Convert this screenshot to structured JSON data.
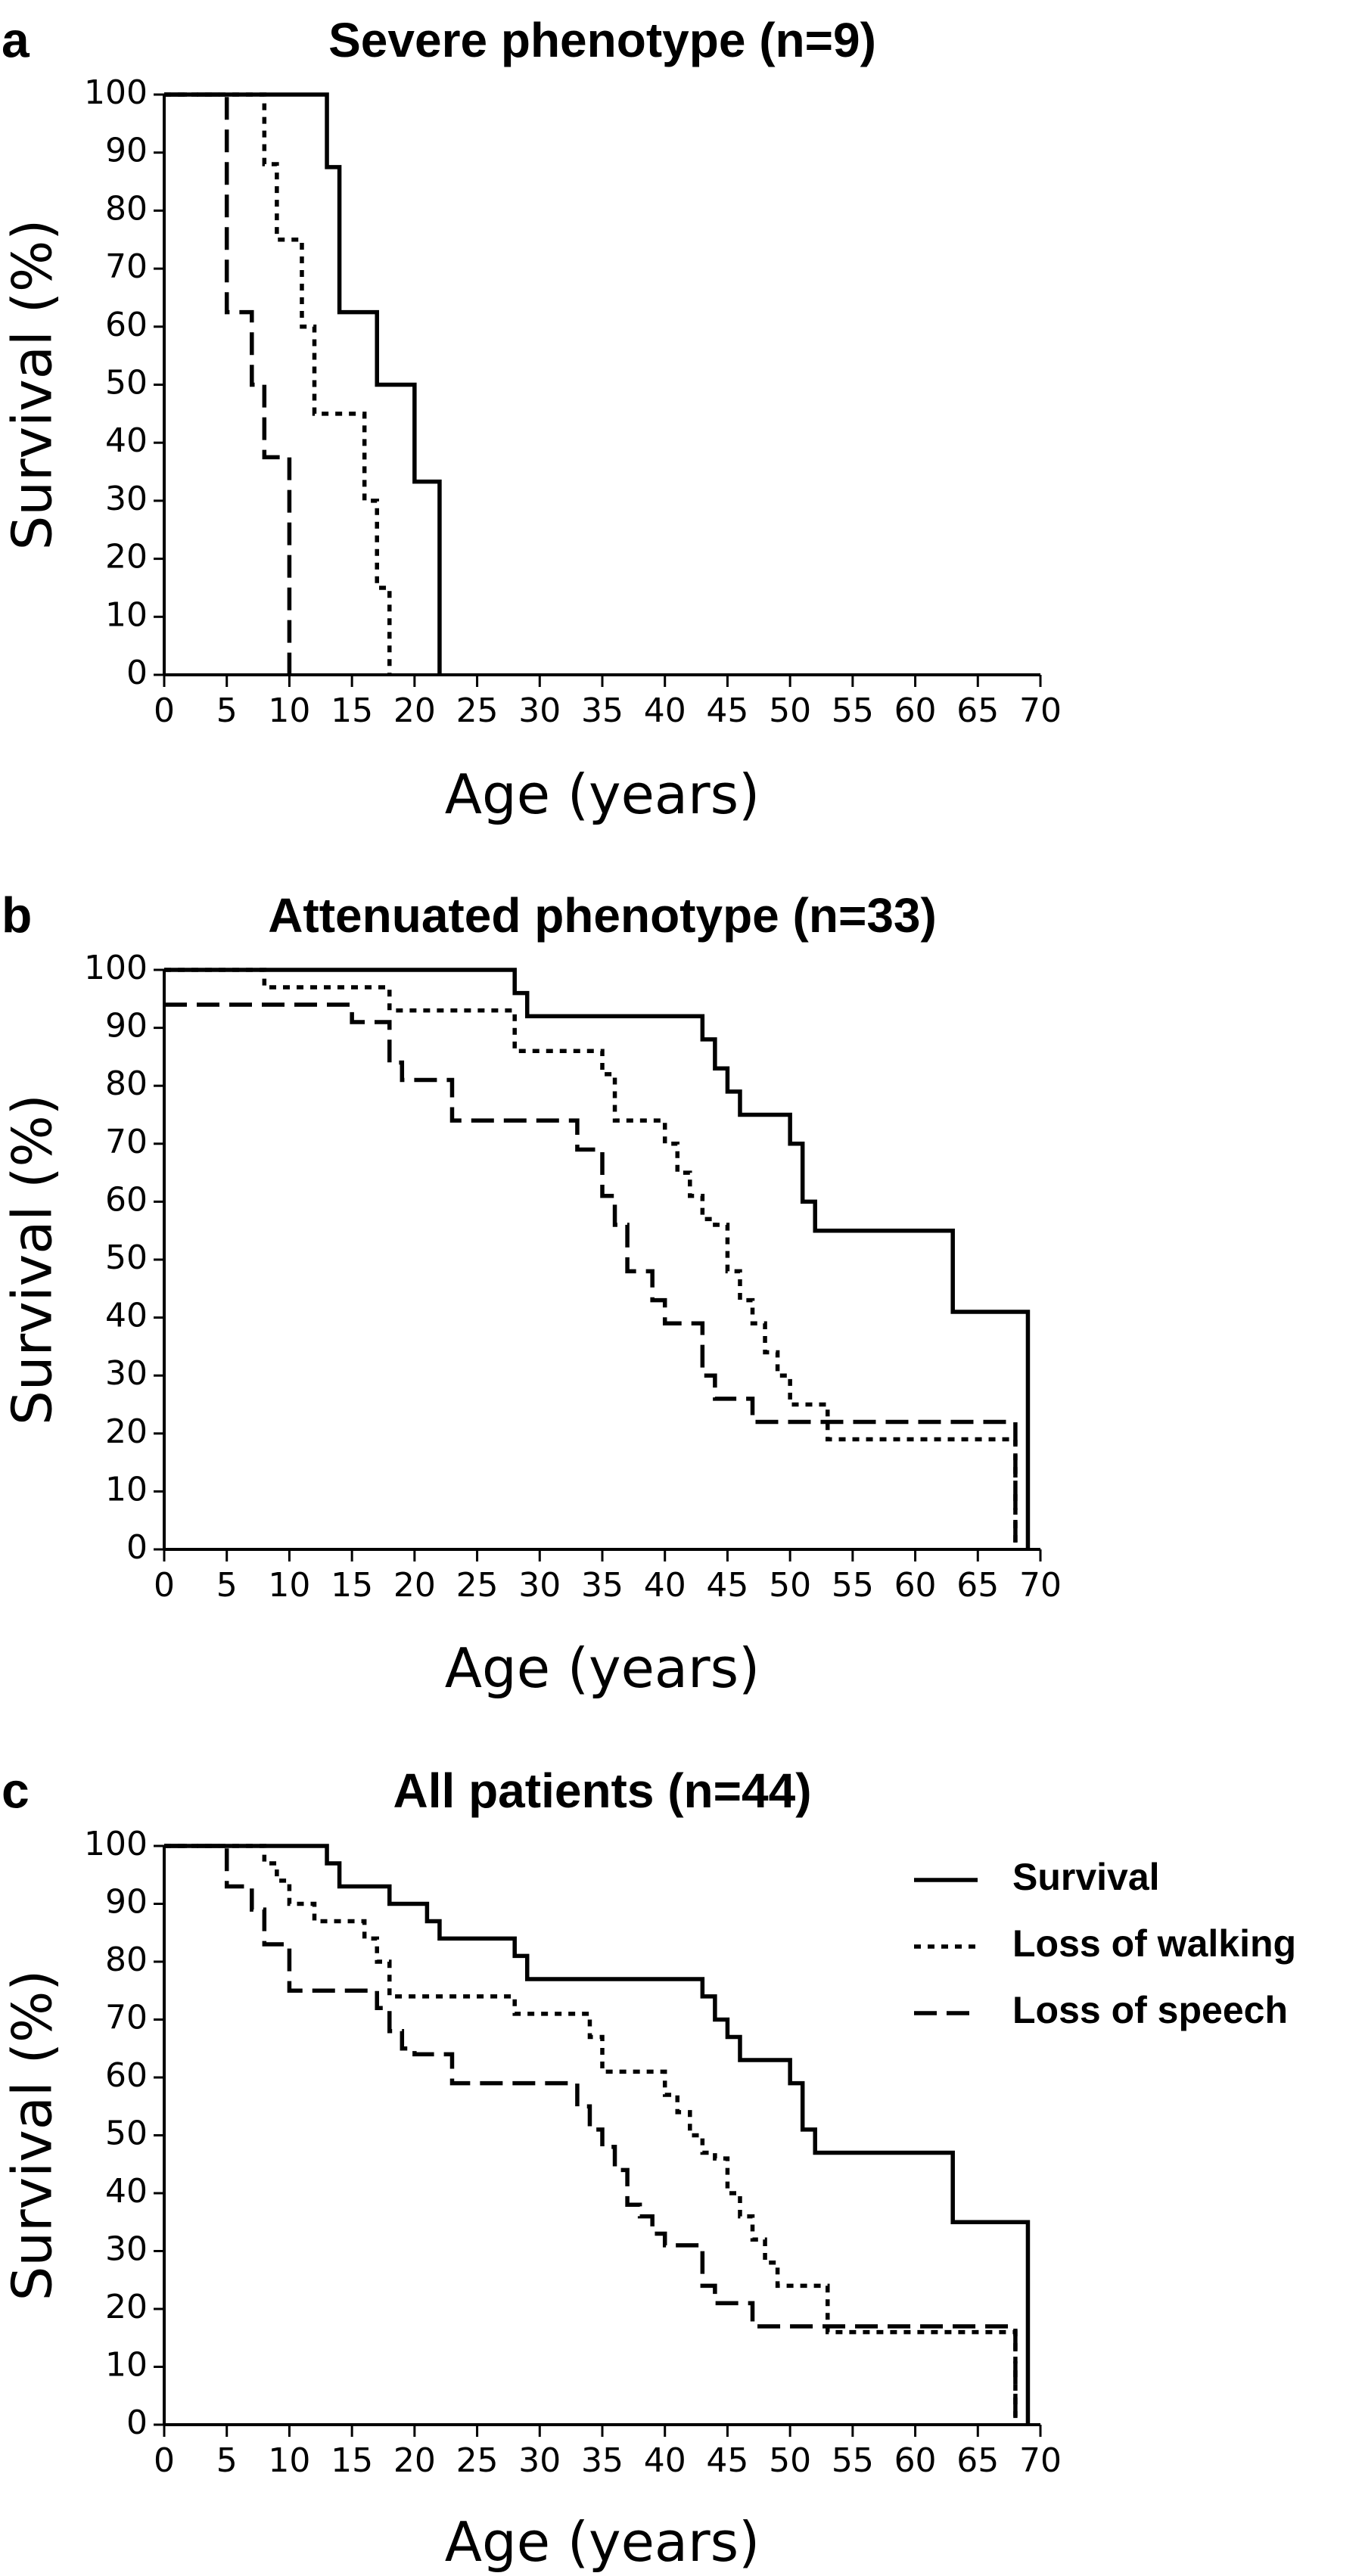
{
  "chart_data": [
    {
      "type": "line",
      "panel": "a",
      "title": "Severe phenotype (n=9)",
      "xlabel": "Age (years)",
      "ylabel": "Survival (%)",
      "xlim": [
        0,
        70
      ],
      "ylim": [
        0,
        100
      ],
      "xticks": [
        "0",
        "5",
        "10",
        "15",
        "20",
        "25",
        "30",
        "35",
        "40",
        "45",
        "50",
        "55",
        "60",
        "65",
        "70"
      ],
      "yticks": [
        "0",
        "10",
        "20",
        "30",
        "40",
        "50",
        "60",
        "70",
        "80",
        "90",
        "100"
      ],
      "step": true,
      "grid": false,
      "legend": null,
      "series": [
        {
          "style": "solid",
          "x": [
            0,
            13,
            14,
            17,
            20,
            22
          ],
          "y": [
            100,
            87.5,
            62.5,
            50,
            33.3,
            0
          ]
        },
        {
          "style": "dotted",
          "x": [
            0,
            8,
            9,
            10,
            11,
            12,
            16,
            17,
            18
          ],
          "y": [
            100,
            88,
            75,
            75,
            60,
            45,
            30,
            15,
            0
          ]
        },
        {
          "style": "dashed",
          "x": [
            0,
            5,
            7,
            8,
            10
          ],
          "y": [
            100,
            62.5,
            50,
            37.5,
            0
          ]
        }
      ]
    },
    {
      "type": "line",
      "panel": "b",
      "title": "Attenuated phenotype (n=33)",
      "xlabel": "Age (years)",
      "ylabel": "Survival (%)",
      "xlim": [
        0,
        70
      ],
      "ylim": [
        0,
        100
      ],
      "xticks": [
        "0",
        "5",
        "10",
        "15",
        "20",
        "25",
        "30",
        "35",
        "40",
        "45",
        "50",
        "55",
        "60",
        "65",
        "70"
      ],
      "yticks": [
        "0",
        "10",
        "20",
        "30",
        "40",
        "50",
        "60",
        "70",
        "80",
        "90",
        "100"
      ],
      "step": true,
      "grid": false,
      "legend": null,
      "series": [
        {
          "style": "solid",
          "x": [
            0,
            28,
            29,
            43,
            44,
            45,
            46,
            47,
            50,
            51,
            52,
            63,
            69
          ],
          "y": [
            100,
            96,
            92,
            88,
            83,
            79,
            75,
            75,
            70,
            60,
            55,
            41,
            0
          ]
        },
        {
          "style": "dotted",
          "x": [
            0,
            8,
            18,
            28,
            35,
            36,
            40,
            41,
            42,
            43,
            44,
            45,
            46,
            47,
            48,
            49,
            50,
            53,
            68
          ],
          "y": [
            100,
            97,
            93,
            86,
            82,
            74,
            70,
            65,
            61,
            57,
            56,
            48,
            43,
            39,
            34,
            30,
            25,
            19,
            0
          ]
        },
        {
          "style": "dashed",
          "x": [
            0,
            8,
            15,
            18,
            19,
            23,
            33,
            35,
            36,
            37,
            39,
            40,
            43,
            44,
            46,
            47,
            68
          ],
          "y": [
            94,
            94,
            91,
            84,
            81,
            74,
            69,
            61,
            56,
            48,
            43,
            39,
            30,
            26,
            26,
            22,
            0
          ]
        }
      ]
    },
    {
      "type": "line",
      "panel": "c",
      "title": "All patients (n=44)",
      "xlabel": "Age (years)",
      "ylabel": "Survival (%)",
      "xlim": [
        0,
        70
      ],
      "ylim": [
        0,
        100
      ],
      "xticks": [
        "0",
        "5",
        "10",
        "15",
        "20",
        "25",
        "30",
        "35",
        "40",
        "45",
        "50",
        "55",
        "60",
        "65",
        "70"
      ],
      "yticks": [
        "0",
        "10",
        "20",
        "30",
        "40",
        "50",
        "60",
        "70",
        "80",
        "90",
        "100"
      ],
      "step": true,
      "grid": false,
      "legend": "top-right",
      "series": [
        {
          "name": "Survival",
          "style": "solid",
          "x": [
            0,
            13,
            14,
            18,
            21,
            22,
            28,
            29,
            43,
            44,
            45,
            46,
            47,
            50,
            51,
            52,
            63,
            69
          ],
          "y": [
            100,
            97,
            93,
            90,
            87,
            84,
            81,
            77,
            74,
            70,
            67,
            63,
            63,
            59,
            51,
            47,
            35,
            0
          ]
        },
        {
          "name": "Loss of walking",
          "style": "dotted",
          "x": [
            0,
            8,
            9,
            10,
            11,
            12,
            16,
            17,
            18,
            28,
            34,
            35,
            36,
            40,
            41,
            42,
            43,
            44,
            45,
            46,
            47,
            48,
            49,
            50,
            53,
            68
          ],
          "y": [
            100,
            97,
            94,
            90,
            90,
            87,
            84,
            80,
            74,
            71,
            67,
            61,
            61,
            57,
            54,
            50,
            47,
            46,
            40,
            36,
            32,
            28,
            24,
            24,
            16,
            0
          ]
        },
        {
          "name": "Loss of speech",
          "style": "dashed",
          "x": [
            0,
            5,
            7,
            8,
            10,
            15,
            17,
            18,
            19,
            20,
            23,
            33,
            34,
            35,
            36,
            37,
            38,
            39,
            40,
            43,
            44,
            46,
            47,
            68
          ],
          "y": [
            100,
            93,
            89,
            83,
            75,
            75,
            72,
            68,
            65,
            64,
            59,
            55,
            51,
            48,
            44,
            38,
            36,
            33,
            31,
            24,
            21,
            21,
            17,
            0
          ]
        }
      ]
    }
  ]
}
